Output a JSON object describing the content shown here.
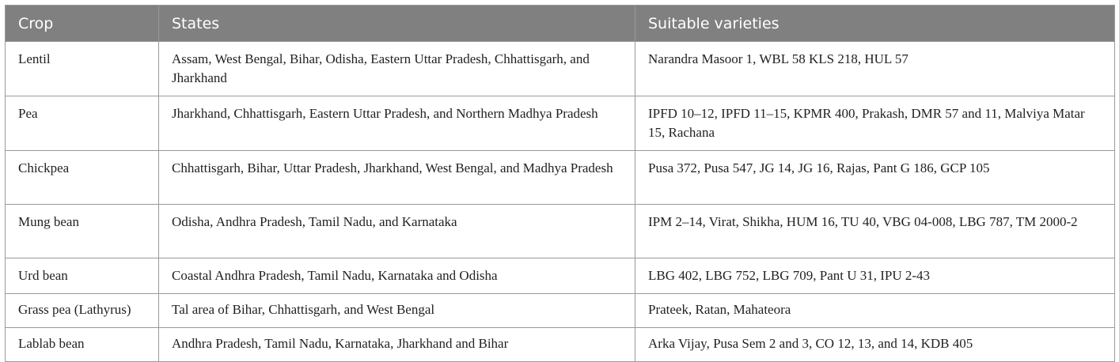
{
  "table": {
    "columns": [
      "Crop",
      "States",
      "Suitable varieties"
    ],
    "rows": [
      [
        "Lentil",
        "Assam, West Bengal, Bihar, Odisha, Eastern Uttar Pradesh, Chhattisgarh, and Jharkhand",
        "Narandra Masoor 1, WBL 58 KLS 218, HUL 57"
      ],
      [
        "Pea",
        "Jharkhand, Chhattisgarh, Eastern Uttar Pradesh, and Northern Madhya Pradesh",
        "IPFD 10–12, IPFD 11–15, KPMR 400, Prakash, DMR 57 and 11, Malviya Matar 15, Rachana"
      ],
      [
        "Chickpea",
        "Chhattisgarh, Bihar, Uttar Pradesh, Jharkhand, West Bengal, and Madhya Pradesh",
        "Pusa 372, Pusa 547, JG 14, JG 16, Rajas, Pant G 186, GCP 105"
      ],
      [
        "Mung bean",
        "Odisha, Andhra Pradesh, Tamil Nadu, and Karnataka",
        "IPM 2–14, Virat, Shikha, HUM 16, TU 40, VBG 04-008, LBG 787, TM 2000-2"
      ],
      [
        "Urd bean",
        "Coastal Andhra Pradesh, Tamil Nadu, Karnataka and Odisha",
        "LBG 402, LBG 752, LBG 709, Pant U 31, IPU 2-43"
      ],
      [
        "Grass pea (Lathyrus)",
        "Tal area of Bihar, Chhattisgarh, and West Bengal",
        "Prateek, Ratan, Mahateora"
      ],
      [
        "Lablab bean",
        "Andhra Pradesh, Tamil Nadu, Karnataka, Jharkhand and Bihar",
        "Arka Vijay, Pusa Sem 2 and 3, CO 12, 13, and 14, KDB 405"
      ]
    ]
  }
}
